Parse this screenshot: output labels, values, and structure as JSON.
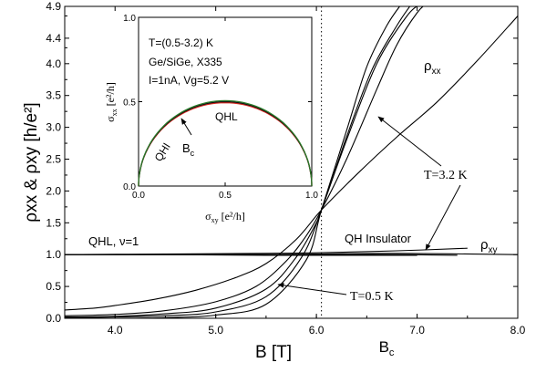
{
  "chart_data": [
    {
      "type": "line",
      "xlabel": "B [T]",
      "ylabel": "ρxx & ρxy [h/e²]",
      "xlim": [
        3.5,
        8.0
      ],
      "ylim": [
        0.0,
        4.9
      ],
      "x_ticks": [
        "4.0",
        "5.0",
        "6.0",
        "7.0",
        "8.0"
      ],
      "y_ticks": [
        "0.0",
        "0.5",
        "1.0",
        "1.5",
        "2.0",
        "2.5",
        "3.0",
        "3.5",
        "4.0",
        "4.4",
        "4.9"
      ],
      "grid": false,
      "vertical_marker": {
        "x": 6.05,
        "label": "B_c",
        "style": "dotted"
      },
      "series": [
        {
          "group": "rho_xx",
          "x": [
            3.5,
            3.8,
            4.0,
            4.4,
            4.8,
            5.2,
            5.5,
            5.8,
            6.05,
            6.4,
            6.8,
            7.2,
            7.6,
            8.0
          ],
          "values": [
            0.13,
            0.16,
            0.2,
            0.3,
            0.44,
            0.64,
            0.86,
            1.24,
            1.7,
            2.26,
            2.85,
            3.4,
            4.05,
            4.75
          ]
        },
        {
          "group": "rho_xx",
          "x": [
            3.5,
            4.0,
            4.5,
            5.0,
            5.4,
            5.7,
            5.9,
            6.05,
            6.3,
            6.6,
            6.8,
            7.0,
            7.1
          ],
          "values": [
            0.04,
            0.06,
            0.12,
            0.26,
            0.5,
            0.9,
            1.3,
            1.7,
            2.5,
            3.6,
            4.3,
            4.8,
            4.95
          ]
        },
        {
          "group": "rho_xx",
          "x": [
            3.5,
            4.0,
            4.5,
            5.0,
            5.5,
            5.8,
            6.0,
            6.05,
            6.3,
            6.6,
            6.9,
            7.05
          ],
          "values": [
            0.02,
            0.03,
            0.07,
            0.16,
            0.46,
            0.96,
            1.5,
            1.7,
            2.8,
            4.0,
            4.75,
            4.95
          ]
        },
        {
          "group": "rho_xx",
          "x": [
            3.5,
            4.0,
            4.5,
            5.0,
            5.5,
            5.85,
            6.05,
            6.3,
            6.55,
            6.8,
            6.95
          ],
          "values": [
            0.01,
            0.02,
            0.04,
            0.1,
            0.34,
            0.95,
            1.7,
            2.85,
            3.9,
            4.6,
            4.95
          ]
        },
        {
          "group": "rho_xx",
          "x": [
            3.5,
            4.0,
            4.5,
            5.0,
            5.5,
            5.9,
            6.05,
            6.3,
            6.5,
            6.7,
            6.85
          ],
          "values": [
            0.0,
            0.0,
            0.01,
            0.05,
            0.22,
            0.92,
            1.7,
            2.95,
            3.95,
            4.6,
            4.95
          ]
        },
        {
          "group": "rho_xy",
          "x": [
            3.5,
            4.5,
            5.5,
            6.05,
            6.8,
            7.5
          ],
          "values": [
            1.0,
            1.01,
            1.02,
            1.03,
            1.06,
            1.1
          ]
        },
        {
          "group": "rho_xy",
          "x": [
            3.5,
            4.5,
            5.5,
            6.05,
            6.8,
            8.0
          ],
          "values": [
            1.0,
            1.0,
            1.0,
            1.01,
            1.02,
            1.0
          ]
        },
        {
          "group": "rho_xy",
          "x": [
            3.5,
            4.5,
            5.5,
            6.05,
            6.8,
            7.4
          ],
          "values": [
            1.0,
            1.0,
            1.0,
            1.0,
            1.0,
            0.99
          ]
        },
        {
          "group": "rho_xy",
          "x": [
            3.5,
            4.5,
            5.5,
            6.05,
            6.8,
            7.0
          ],
          "values": [
            1.0,
            1.0,
            0.99,
            0.99,
            0.99,
            0.99
          ]
        }
      ],
      "labels": {
        "rho_xx": "ρxx",
        "rho_xy": "ρxy",
        "t_high": "T=3.2 K",
        "t_low": "T=0.5 K",
        "qhl": "QHL, ν=1",
        "qh_insulator": "QH Insulator"
      }
    },
    {
      "type": "line",
      "xlabel": "σxy [e²/h]",
      "ylabel": "σxx [e²/h]",
      "xlim": [
        0.0,
        1.0
      ],
      "ylim": [
        0.0,
        1.0
      ],
      "x_ticks": [
        "0.0",
        "0.5",
        "1.0"
      ],
      "y_ticks": [
        "0.0",
        "0.5",
        "1.0"
      ],
      "semicircle": {
        "center": 0.5,
        "radius": 0.5
      },
      "curve_colors": [
        "#d7261e",
        "#111111",
        "#2a7a2a"
      ],
      "annotation_lines": [
        "T=(0.5-3.2) K",
        "Ge/SiGe, X335",
        "I=1nA, Vg=5.2 V"
      ],
      "region_labels": {
        "qhl": "QHL",
        "qhi": "QHI",
        "bc": "B_c"
      }
    }
  ]
}
